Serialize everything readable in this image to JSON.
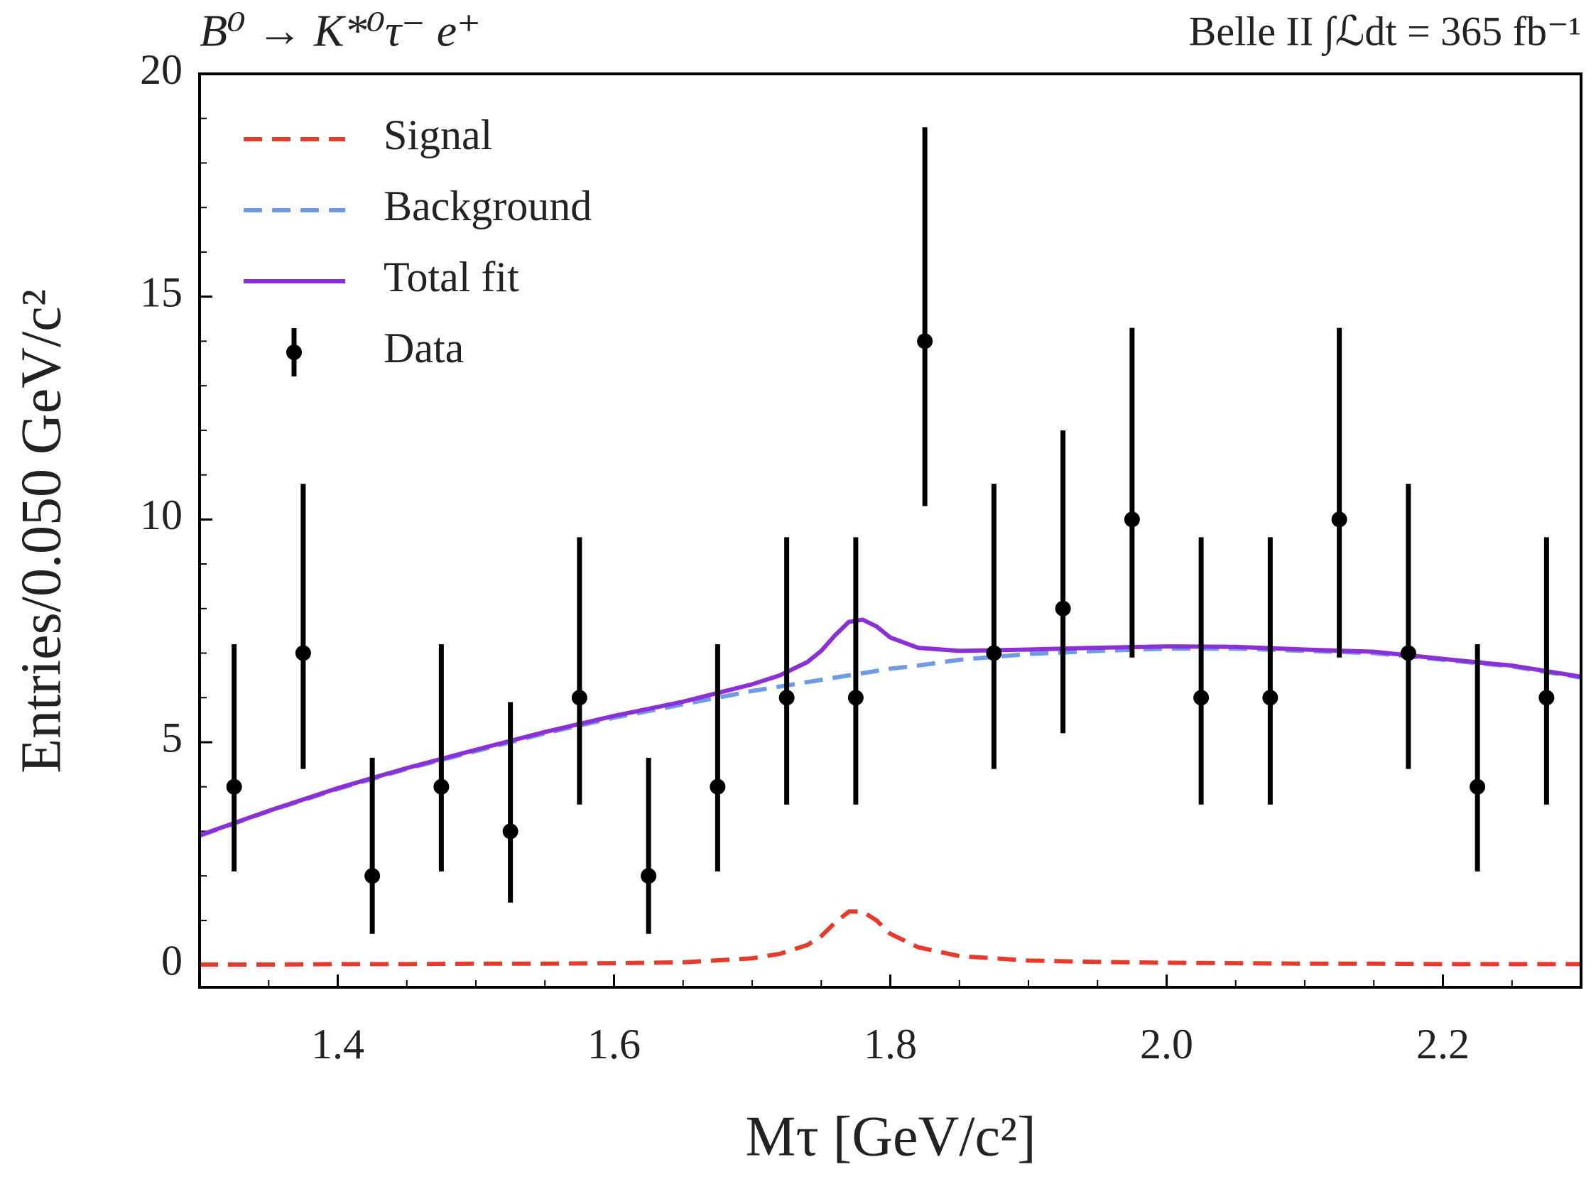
{
  "chart_data": {
    "type": "fit",
    "title": "B⁰ → K*⁰τ⁻ e⁺",
    "subtitle": "Belle II ∫ℒdt = 365 fb⁻¹",
    "xlabel": "Mτ [GeV/c²]",
    "ylabel": "Entries/0.050 GeV/c²",
    "xlim": [
      1.3,
      2.3
    ],
    "ylim": [
      -0.5,
      20
    ],
    "xticks": [
      1.4,
      1.6,
      1.8,
      {
        "value": 2.0,
        "label": "2.0"
      },
      2.2
    ],
    "yticks": [
      0,
      5,
      10,
      15,
      20
    ],
    "xticks_minor": [
      1.35,
      1.45,
      1.5,
      1.55,
      1.65,
      1.7,
      1.75,
      1.85,
      1.9,
      1.95,
      2.05,
      2.1,
      2.15,
      2.25
    ],
    "yticks_minor": [
      1,
      2,
      3,
      4,
      6,
      7,
      8,
      9,
      11,
      12,
      13,
      14,
      16,
      17,
      18,
      19
    ],
    "legend": "upper left",
    "series": [
      {
        "name": "Signal",
        "type": "line",
        "linestyle": "dashed",
        "color": "#e8392b",
        "x": [
          1.3,
          1.35,
          1.4,
          1.45,
          1.5,
          1.55,
          1.6,
          1.65,
          1.7,
          1.72,
          1.74,
          1.75,
          1.76,
          1.77,
          1.78,
          1.79,
          1.8,
          1.82,
          1.85,
          1.9,
          1.95,
          2.0,
          2.05,
          2.1,
          2.15,
          2.2,
          2.25,
          2.3
        ],
        "values": [
          0.01,
          0.01,
          0.02,
          0.02,
          0.03,
          0.03,
          0.04,
          0.06,
          0.15,
          0.25,
          0.45,
          0.65,
          0.95,
          1.2,
          1.2,
          1.0,
          0.7,
          0.4,
          0.2,
          0.1,
          0.07,
          0.05,
          0.04,
          0.03,
          0.03,
          0.02,
          0.02,
          0.02
        ]
      },
      {
        "name": "Background",
        "type": "line",
        "linestyle": "dashed",
        "color": "#6f9ae8",
        "x": [
          1.3,
          1.35,
          1.4,
          1.45,
          1.5,
          1.55,
          1.6,
          1.65,
          1.7,
          1.72,
          1.74,
          1.75,
          1.76,
          1.77,
          1.78,
          1.79,
          1.8,
          1.82,
          1.85,
          1.9,
          1.95,
          2.0,
          2.05,
          2.1,
          2.15,
          2.2,
          2.25,
          2.3
        ],
        "values": [
          2.9,
          3.45,
          3.95,
          4.4,
          4.8,
          5.2,
          5.55,
          5.85,
          6.15,
          6.25,
          6.35,
          6.4,
          6.45,
          6.5,
          6.55,
          6.6,
          6.65,
          6.72,
          6.85,
          6.98,
          7.05,
          7.1,
          7.1,
          7.05,
          7.0,
          6.85,
          6.7,
          6.45
        ]
      },
      {
        "name": "Total fit",
        "type": "line",
        "linestyle": "solid",
        "color": "#8b2fd9",
        "x": [
          1.3,
          1.35,
          1.4,
          1.45,
          1.5,
          1.55,
          1.6,
          1.65,
          1.7,
          1.72,
          1.74,
          1.75,
          1.76,
          1.77,
          1.78,
          1.79,
          1.8,
          1.82,
          1.85,
          1.9,
          1.95,
          2.0,
          2.05,
          2.1,
          2.15,
          2.2,
          2.25,
          2.3
        ],
        "values": [
          2.91,
          3.46,
          3.97,
          4.42,
          4.83,
          5.23,
          5.59,
          5.91,
          6.3,
          6.5,
          6.8,
          7.05,
          7.4,
          7.7,
          7.75,
          7.6,
          7.35,
          7.12,
          7.05,
          7.08,
          7.12,
          7.15,
          7.14,
          7.08,
          7.03,
          6.87,
          6.72,
          6.47
        ]
      },
      {
        "name": "Data",
        "type": "errorbar",
        "color": "#000000",
        "x": [
          1.325,
          1.375,
          1.425,
          1.475,
          1.525,
          1.575,
          1.625,
          1.675,
          1.725,
          1.775,
          1.825,
          1.875,
          1.925,
          1.975,
          2.025,
          2.075,
          2.125,
          2.175,
          2.225,
          2.275
        ],
        "values": [
          4,
          7,
          2,
          4,
          3,
          6,
          2,
          4,
          6,
          6,
          14,
          7,
          8,
          10,
          6,
          6,
          10,
          7,
          4,
          6
        ],
        "yerr_low": [
          1.9,
          2.6,
          1.3,
          1.9,
          1.6,
          2.4,
          1.3,
          1.9,
          2.4,
          2.4,
          3.7,
          2.6,
          2.8,
          3.1,
          2.4,
          2.4,
          3.1,
          2.6,
          1.9,
          2.4
        ],
        "yerr_high": [
          3.2,
          3.8,
          2.65,
          3.2,
          2.9,
          3.6,
          2.65,
          3.2,
          3.6,
          3.6,
          4.8,
          3.8,
          4.0,
          4.3,
          3.6,
          3.6,
          4.3,
          3.8,
          3.2,
          3.6
        ]
      }
    ]
  }
}
